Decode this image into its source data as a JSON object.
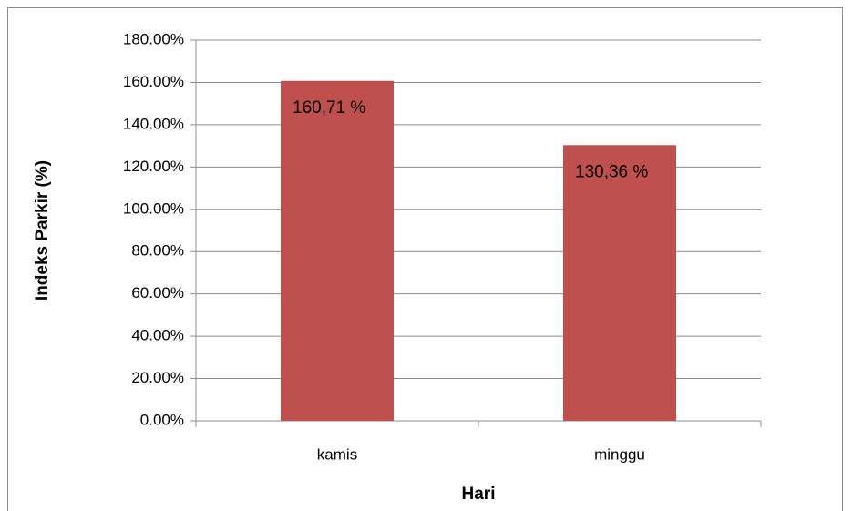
{
  "chart_data": {
    "type": "bar",
    "x_label": "Hari",
    "y_label": "Indeks Parkir (%)",
    "categories": [
      "kamis",
      "minggu"
    ],
    "values": [
      160.71,
      130.36
    ],
    "value_labels": [
      "160,71 %",
      "130,36 %"
    ],
    "color": "#c0504d",
    "ylim": [
      0,
      180
    ],
    "yticks": [
      {
        "value": 0,
        "label": "0.00%"
      },
      {
        "value": 20,
        "label": "20.00%"
      },
      {
        "value": 40,
        "label": "40.00%"
      },
      {
        "value": 60,
        "label": "60.00%"
      },
      {
        "value": 80,
        "label": "80.00%"
      },
      {
        "value": 100,
        "label": "100.00%"
      },
      {
        "value": 120,
        "label": "120.00%"
      },
      {
        "value": 140,
        "label": "140.00%"
      },
      {
        "value": 160,
        "label": "160.00%"
      },
      {
        "value": 180,
        "label": "180.00%"
      }
    ],
    "grid": true
  }
}
